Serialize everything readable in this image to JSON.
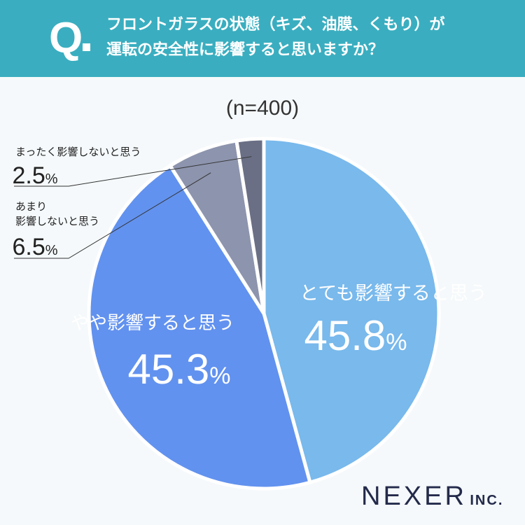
{
  "header": {
    "q_mark": "Q",
    "question_line1": "フロントガラスの状態（キズ、油膜、くもり）が",
    "question_line2": "運転の安全性に影響すると思いますか？"
  },
  "sample_size": "(n=400)",
  "logo": {
    "main": "NEXER",
    "suffix": "INC."
  },
  "colors": {
    "header_bg": "#3aaec0",
    "slice1": "#79b9ec",
    "slice2": "#6292ef",
    "slice3": "#8d94ad",
    "slice4": "#6a6f85"
  },
  "chart_data": {
    "type": "pie",
    "title": "",
    "slices": [
      {
        "label": "とても影響すると思う",
        "value": 45.8,
        "display": "45.8",
        "unit": "%"
      },
      {
        "label": "やや影響すると思う",
        "value": 45.3,
        "display": "45.3",
        "unit": "%"
      },
      {
        "label_lines": [
          "あまり",
          "影響しないと思う"
        ],
        "value": 6.5,
        "display": "6.5",
        "unit": "%"
      },
      {
        "label": "まったく影響しないと思う",
        "value": 2.5,
        "display": "2.5",
        "unit": "%"
      }
    ]
  }
}
